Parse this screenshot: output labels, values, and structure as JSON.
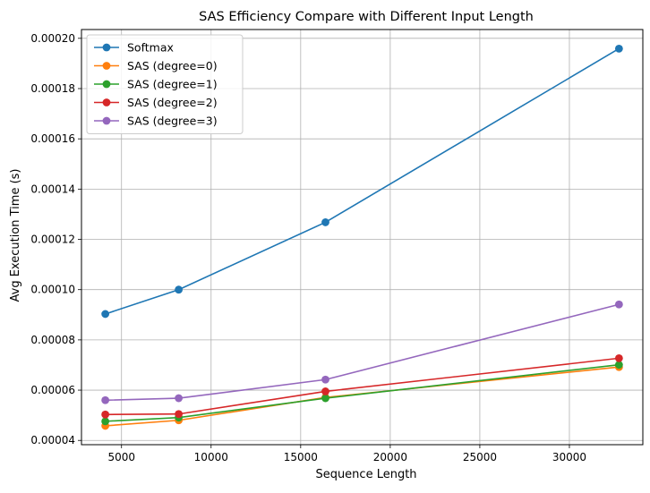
{
  "chart_data": {
    "type": "line",
    "title": "SAS Efficiency Compare with Different Input Length",
    "xlabel": "Sequence Length",
    "ylabel": "Avg Execution Time (s)",
    "x": [
      4096,
      8192,
      16384,
      32768
    ],
    "xlim": [
      2764.8,
      34099.2
    ],
    "ylim": [
      3.83e-05,
      0.0002035
    ],
    "xticks": [
      5000,
      10000,
      15000,
      20000,
      25000,
      30000
    ],
    "xtick_labels": [
      "5000",
      "10000",
      "15000",
      "20000",
      "25000",
      "30000"
    ],
    "yticks": [
      4e-05,
      6e-05,
      8e-05,
      0.0001,
      0.00012,
      0.00014,
      0.00016,
      0.00018,
      0.0002
    ],
    "ytick_labels": [
      "0.00004",
      "0.00006",
      "0.00008",
      "0.00010",
      "0.00012",
      "0.00014",
      "0.00016",
      "0.00018",
      "0.00020"
    ],
    "grid": true,
    "legend_position": "top-left",
    "marker": "circle",
    "series": [
      {
        "name": "Softmax",
        "color": "#1f77b4",
        "values": [
          9.03e-05,
          0.0001,
          0.0001268,
          0.0001959
        ]
      },
      {
        "name": "SAS (degree=0)",
        "color": "#ff7f0e",
        "values": [
          4.58e-05,
          4.8e-05,
          5.71e-05,
          6.92e-05
        ]
      },
      {
        "name": "SAS (degree=1)",
        "color": "#2ca02c",
        "values": [
          4.76e-05,
          4.91e-05,
          5.68e-05,
          7.01e-05
        ]
      },
      {
        "name": "SAS (degree=2)",
        "color": "#d62728",
        "values": [
          5.03e-05,
          5.05e-05,
          5.95e-05,
          7.27e-05
        ]
      },
      {
        "name": "SAS (degree=3)",
        "color": "#9467bd",
        "values": [
          5.6e-05,
          5.68e-05,
          6.42e-05,
          9.41e-05
        ]
      }
    ]
  }
}
